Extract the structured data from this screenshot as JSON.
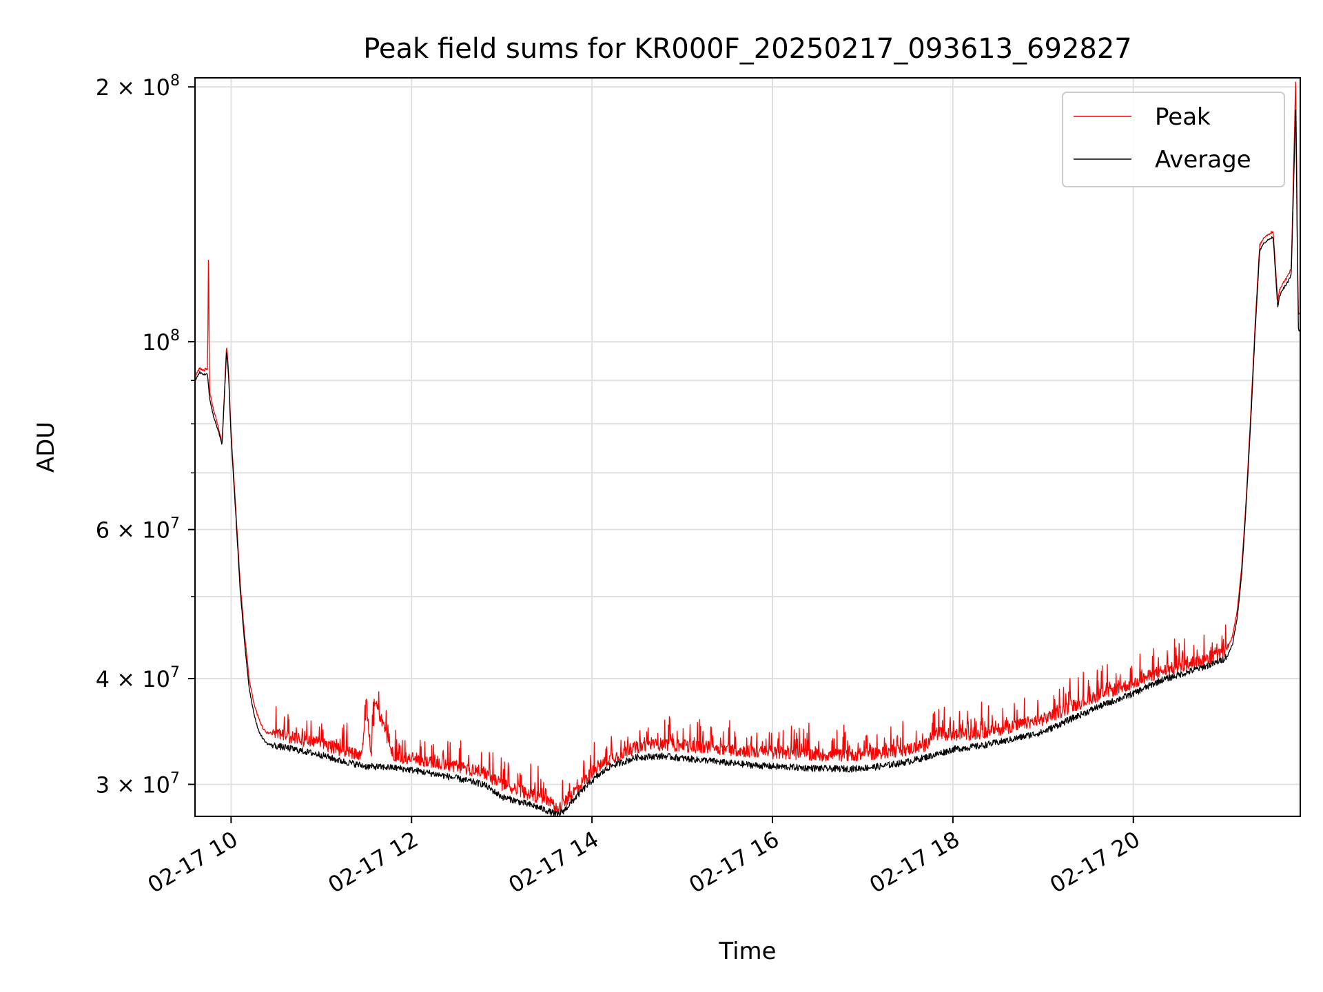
{
  "chart_data": {
    "type": "line",
    "title": "Peak field sums for KR000F_20250217_093613_692827",
    "xlabel": "Time",
    "ylabel": "ADU",
    "x_unit": "hours of day (2025-02-17)",
    "xlim": [
      9.6,
      21.85
    ],
    "ylim": [
      27500000,
      205000000
    ],
    "y_scale": "log",
    "grid": true,
    "legend_position": "top-right",
    "x_ticks": [
      {
        "value": 10,
        "label": "02-17 10"
      },
      {
        "value": 12,
        "label": "02-17 12"
      },
      {
        "value": 14,
        "label": "02-17 14"
      },
      {
        "value": 16,
        "label": "02-17 16"
      },
      {
        "value": 18,
        "label": "02-17 18"
      },
      {
        "value": 20,
        "label": "02-17 20"
      }
    ],
    "y_major_ticks": [
      {
        "value": 30000000,
        "base": "3 × 10",
        "exp": "7"
      },
      {
        "value": 40000000,
        "base": "4 × 10",
        "exp": "7"
      },
      {
        "value": 60000000,
        "base": "6 × 10",
        "exp": "7"
      },
      {
        "value": 100000000,
        "base": "10",
        "exp": "8"
      },
      {
        "value": 200000000,
        "base": "2 × 10",
        "exp": "8"
      }
    ],
    "y_minor_ticks": [
      50000000,
      70000000,
      80000000,
      90000000
    ],
    "series": [
      {
        "name": "Peak",
        "color": "#ff0000",
        "x": [
          9.6,
          9.65,
          9.7,
          9.72,
          9.74,
          9.75,
          9.76,
          9.8,
          9.85,
          9.9,
          9.95,
          9.97,
          10.0,
          10.05,
          10.1,
          10.15,
          10.2,
          10.25,
          10.3,
          10.35,
          10.4,
          10.5,
          10.7,
          11.0,
          11.2,
          11.45,
          11.5,
          11.55,
          11.6,
          11.8,
          12.0,
          12.3,
          12.5,
          12.8,
          13.0,
          13.2,
          13.4,
          13.55,
          13.62,
          13.7,
          13.85,
          14.0,
          14.2,
          14.5,
          14.8,
          15.0,
          15.3,
          15.5,
          15.8,
          16.0,
          16.3,
          16.6,
          16.9,
          17.2,
          17.5,
          17.7,
          17.8,
          18.0,
          18.3,
          18.6,
          19.0,
          19.3,
          19.6,
          20.0,
          20.3,
          20.6,
          20.9,
          21.0,
          21.05,
          21.1,
          21.15,
          21.2,
          21.25,
          21.3,
          21.35,
          21.4,
          21.45,
          21.5,
          21.55,
          21.6,
          21.62,
          21.65,
          21.7,
          21.75,
          21.8,
          21.82,
          21.83,
          21.84,
          21.85
        ],
        "y": [
          91000000,
          93000000,
          92500000,
          93000000,
          92500000,
          134000000,
          87500000,
          83500000,
          80000000,
          76000000,
          99000000,
          93000000,
          78000000,
          64000000,
          52000000,
          45000000,
          40000000,
          37500000,
          36000000,
          35000000,
          34500000,
          34500000,
          34000000,
          33500000,
          33000000,
          32500000,
          37500000,
          32500000,
          37500000,
          32400000,
          32200000,
          31800000,
          31500000,
          31000000,
          30000000,
          29500000,
          29000000,
          28500000,
          28000000,
          28600000,
          29800000,
          31000000,
          32200000,
          33200000,
          33500000,
          33300000,
          33200000,
          33000000,
          32800000,
          32700000,
          32600000,
          32500000,
          32500000,
          32700000,
          33000000,
          33400000,
          34500000,
          34300000,
          34500000,
          35000000,
          35800000,
          37000000,
          38200000,
          39500000,
          40800000,
          41500000,
          42500000,
          43000000,
          43500000,
          45000000,
          48000000,
          54000000,
          65000000,
          82000000,
          105000000,
          130000000,
          133000000,
          134000000,
          135000000,
          112000000,
          115000000,
          117000000,
          119000000,
          122000000,
          205000000,
          125000000,
          108000000,
          108000000,
          108000000
        ]
      },
      {
        "name": "Average",
        "color": "#000000",
        "x": [
          9.6,
          9.65,
          9.7,
          9.74,
          9.76,
          9.8,
          9.85,
          9.9,
          9.95,
          9.97,
          10.0,
          10.05,
          10.1,
          10.15,
          10.2,
          10.25,
          10.3,
          10.35,
          10.4,
          10.5,
          10.7,
          11.0,
          11.2,
          11.5,
          11.8,
          12.0,
          12.3,
          12.5,
          12.8,
          13.0,
          13.2,
          13.4,
          13.55,
          13.62,
          13.7,
          13.85,
          14.0,
          14.2,
          14.5,
          14.8,
          15.0,
          15.3,
          15.5,
          15.8,
          16.0,
          16.3,
          16.6,
          16.9,
          17.2,
          17.5,
          17.8,
          18.0,
          18.3,
          18.6,
          19.0,
          19.3,
          19.6,
          20.0,
          20.3,
          20.6,
          20.9,
          21.0,
          21.05,
          21.1,
          21.15,
          21.2,
          21.25,
          21.3,
          21.35,
          21.4,
          21.45,
          21.5,
          21.55,
          21.6,
          21.62,
          21.65,
          21.7,
          21.75,
          21.8,
          21.82,
          21.83,
          21.84,
          21.85
        ],
        "y": [
          90000000,
          92000000,
          91500000,
          91500000,
          86000000,
          82000000,
          79000000,
          75500000,
          97500000,
          92000000,
          77000000,
          63000000,
          51000000,
          44000000,
          39000000,
          36500000,
          34800000,
          34000000,
          33500000,
          33300000,
          33000000,
          32500000,
          32000000,
          31500000,
          31400000,
          31200000,
          30800000,
          30500000,
          30000000,
          29000000,
          28600000,
          28200000,
          27800000,
          27600000,
          28000000,
          29200000,
          30300000,
          31500000,
          32300000,
          32400000,
          32200000,
          32000000,
          31800000,
          31600000,
          31500000,
          31400000,
          31300000,
          31300000,
          31500000,
          31900000,
          32500000,
          33000000,
          33300000,
          33800000,
          34600000,
          35800000,
          37000000,
          38400000,
          39800000,
          40700000,
          41700000,
          42200000,
          42700000,
          44000000,
          47000000,
          53000000,
          64000000,
          80000000,
          103000000,
          128000000,
          131000000,
          132000000,
          133000000,
          110000000,
          113000000,
          115000000,
          117000000,
          120000000,
          190000000,
          121000000,
          103000000,
          103000000,
          103000000
        ]
      }
    ]
  }
}
